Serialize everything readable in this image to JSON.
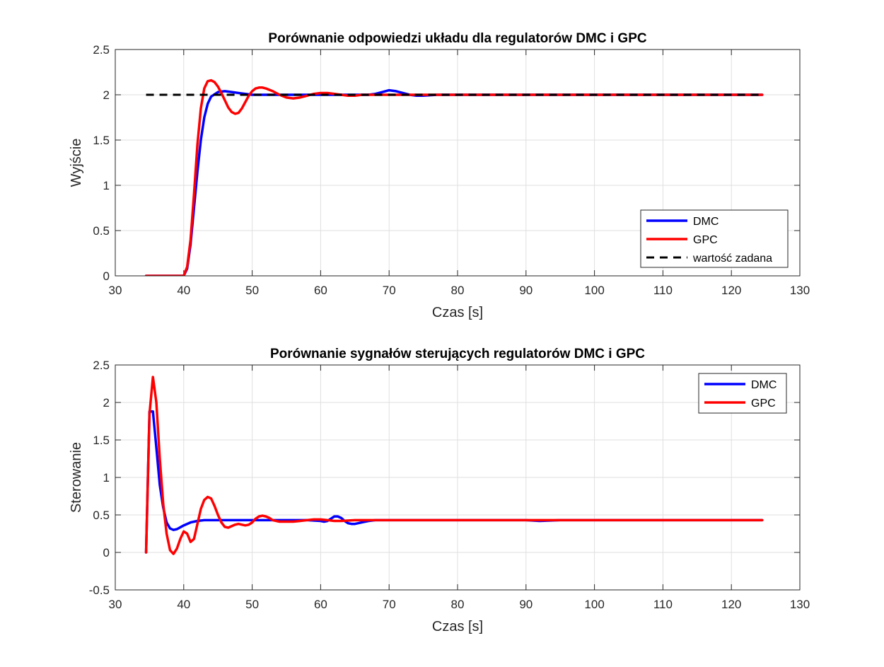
{
  "chart_data": [
    {
      "type": "line",
      "title": "Porównanie odpowiedzi układu dla regulatorów DMC i GPC",
      "xlabel": "Czas [s]",
      "ylabel": "Wyjście",
      "xlim": [
        30,
        130
      ],
      "ylim": [
        0,
        2.5
      ],
      "xticks": [
        "30",
        "40",
        "50",
        "60",
        "70",
        "80",
        "90",
        "100",
        "110",
        "120",
        "130"
      ],
      "yticks": [
        "0",
        "0.5",
        "1",
        "1.5",
        "2",
        "2.5"
      ],
      "grid": true,
      "legend_position": "bottom-right",
      "series": [
        {
          "name": "DMC",
          "color": "#0000ff",
          "style": "solid",
          "x": [
            34.5,
            40,
            40.5,
            41,
            41.5,
            42,
            42.5,
            43,
            43.5,
            44,
            45,
            46,
            47,
            48,
            49,
            50,
            52,
            55,
            60,
            65,
            67,
            68,
            69,
            70,
            71,
            72,
            73,
            74,
            75,
            77,
            80,
            90,
            100,
            110,
            120,
            124.5
          ],
          "y": [
            0,
            0,
            0.08,
            0.35,
            0.75,
            1.15,
            1.5,
            1.75,
            1.9,
            1.98,
            2.03,
            2.04,
            2.03,
            2.02,
            2.01,
            2.0,
            2.0,
            2.0,
            2.0,
            2.0,
            2.0,
            2.01,
            2.03,
            2.05,
            2.04,
            2.02,
            2.0,
            1.99,
            1.99,
            2.0,
            2.0,
            2.0,
            2.0,
            2.0,
            2.0,
            2.0
          ]
        },
        {
          "name": "GPC",
          "color": "#ff0000",
          "style": "solid",
          "x": [
            34.5,
            40,
            40.5,
            41,
            41.5,
            42,
            42.5,
            43,
            43.5,
            44,
            44.5,
            45,
            45.5,
            46,
            46.5,
            47,
            47.5,
            48,
            48.5,
            49,
            49.5,
            50,
            50.5,
            51,
            51.5,
            52,
            53,
            54,
            55,
            56,
            57,
            58,
            59,
            60,
            61,
            62,
            63,
            64,
            65,
            66,
            67,
            68,
            70,
            72,
            75,
            80,
            90,
            100,
            110,
            120,
            124.5
          ],
          "y": [
            0,
            0,
            0.1,
            0.4,
            0.9,
            1.45,
            1.85,
            2.07,
            2.15,
            2.16,
            2.14,
            2.09,
            2.02,
            1.94,
            1.86,
            1.81,
            1.79,
            1.8,
            1.85,
            1.92,
            1.99,
            2.04,
            2.07,
            2.08,
            2.08,
            2.07,
            2.04,
            2.0,
            1.97,
            1.96,
            1.97,
            1.99,
            2.01,
            2.02,
            2.02,
            2.01,
            2.0,
            1.99,
            1.99,
            2.0,
            2.0,
            2.0,
            2.0,
            2.0,
            2.0,
            2.0,
            2.0,
            2.0,
            2.0,
            2.0,
            2.0
          ]
        },
        {
          "name": "wartość zadana",
          "color": "#000000",
          "style": "dashed",
          "x": [
            34.5,
            124.5
          ],
          "y": [
            2,
            2
          ]
        }
      ]
    },
    {
      "type": "line",
      "title": "Porównanie sygnałów sterujących regulatorów DMC i GPC",
      "xlabel": "Czas [s]",
      "ylabel": "Sterowanie",
      "xlim": [
        30,
        130
      ],
      "ylim": [
        -0.5,
        2.5
      ],
      "xticks": [
        "30",
        "40",
        "50",
        "60",
        "70",
        "80",
        "90",
        "100",
        "110",
        "120",
        "130"
      ],
      "yticks": [
        "-0.5",
        "0",
        "0.5",
        "1",
        "1.5",
        "2",
        "2.5"
      ],
      "grid": true,
      "legend_position": "top-right",
      "series": [
        {
          "name": "DMC",
          "color": "#0000ff",
          "style": "solid",
          "x": [
            34.5,
            35,
            35.5,
            36,
            36.5,
            37,
            37.5,
            38,
            38.5,
            39,
            40,
            41,
            42,
            43,
            45,
            50,
            55,
            58,
            60,
            60.5,
            61,
            61.5,
            62,
            62.5,
            63,
            63.5,
            64,
            64.5,
            65,
            66,
            67,
            68,
            70,
            75,
            80,
            90,
            92,
            95,
            100,
            110,
            120,
            124.5
          ],
          "y": [
            0,
            1.88,
            1.88,
            1.4,
            0.9,
            0.6,
            0.4,
            0.32,
            0.3,
            0.31,
            0.36,
            0.4,
            0.42,
            0.43,
            0.43,
            0.43,
            0.43,
            0.43,
            0.42,
            0.41,
            0.42,
            0.45,
            0.48,
            0.48,
            0.46,
            0.42,
            0.39,
            0.38,
            0.38,
            0.4,
            0.42,
            0.43,
            0.43,
            0.43,
            0.43,
            0.43,
            0.42,
            0.43,
            0.43,
            0.43,
            0.43,
            0.43
          ]
        },
        {
          "name": "GPC",
          "color": "#ff0000",
          "style": "solid",
          "x": [
            34.5,
            35,
            35.5,
            36,
            36.5,
            37,
            37.5,
            38,
            38.5,
            39,
            39.5,
            40,
            40.5,
            41,
            41.5,
            42,
            42.5,
            43,
            43.5,
            44,
            44.5,
            45,
            45.5,
            46,
            46.5,
            47,
            47.5,
            48,
            48.5,
            49,
            49.5,
            50,
            50.5,
            51,
            51.5,
            52,
            52.5,
            53,
            54,
            55,
            56,
            57,
            58,
            59,
            60,
            61,
            62,
            63,
            65,
            70,
            80,
            90,
            100,
            110,
            120,
            124.5
          ],
          "y": [
            0,
            1.85,
            2.34,
            2.0,
            1.25,
            0.65,
            0.25,
            0.03,
            -0.02,
            0.05,
            0.18,
            0.28,
            0.25,
            0.14,
            0.18,
            0.38,
            0.58,
            0.7,
            0.74,
            0.72,
            0.62,
            0.5,
            0.4,
            0.34,
            0.33,
            0.35,
            0.37,
            0.38,
            0.37,
            0.36,
            0.37,
            0.4,
            0.45,
            0.48,
            0.49,
            0.48,
            0.46,
            0.43,
            0.41,
            0.41,
            0.41,
            0.42,
            0.43,
            0.44,
            0.44,
            0.43,
            0.42,
            0.42,
            0.43,
            0.43,
            0.43,
            0.43,
            0.43,
            0.43,
            0.43,
            0.43
          ]
        }
      ]
    }
  ]
}
